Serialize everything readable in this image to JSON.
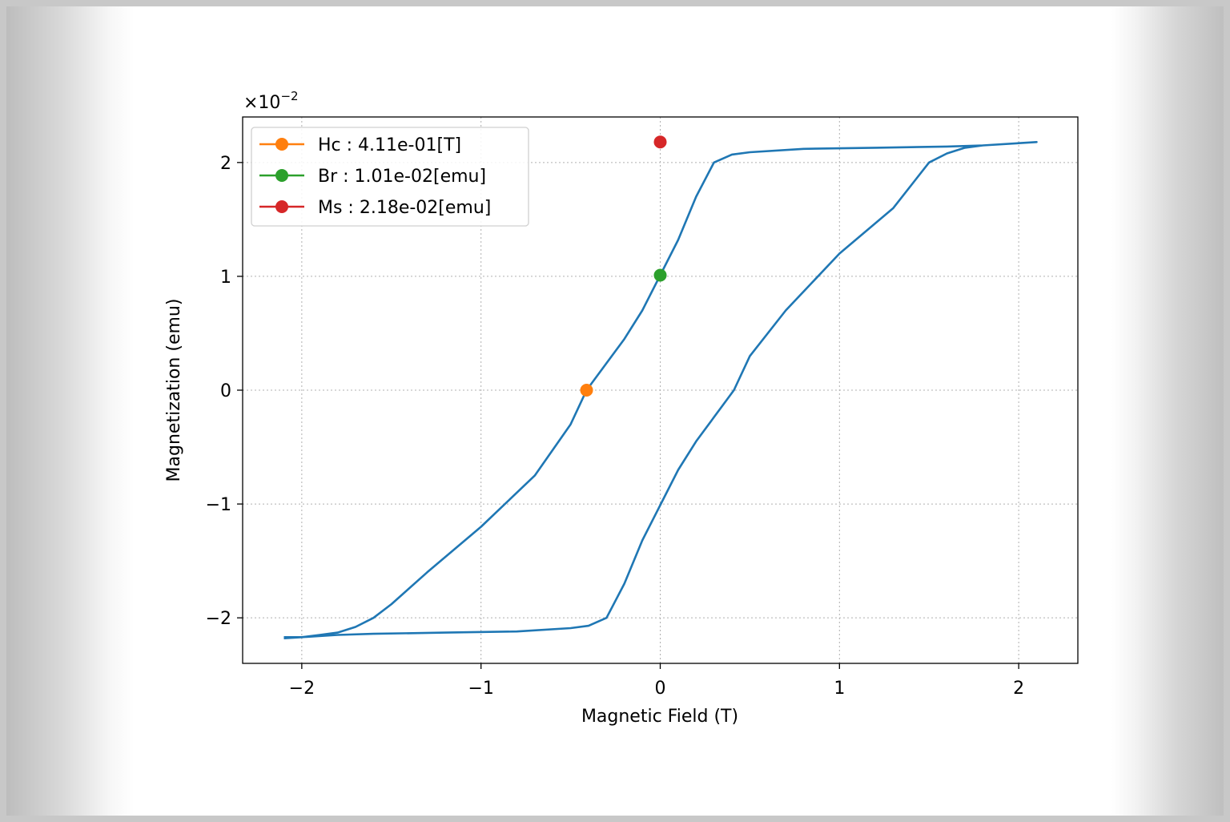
{
  "chart_data": {
    "type": "line",
    "title": "",
    "xlabel": "Magnetic Field (T)",
    "ylabel": "Magnetization (emu)",
    "y_offset_text": "×10",
    "y_offset_exponent": "−2",
    "xlim": [
      -2.33,
      2.33
    ],
    "ylim": [
      -2.4,
      2.4
    ],
    "x_ticks": [
      {
        "value": -2,
        "label": "−2"
      },
      {
        "value": -1,
        "label": "−1"
      },
      {
        "value": 0,
        "label": "0"
      },
      {
        "value": 1,
        "label": "1"
      },
      {
        "value": 2,
        "label": "2"
      }
    ],
    "y_ticks": [
      {
        "value": -2,
        "label": "−2"
      },
      {
        "value": -1,
        "label": "−1"
      },
      {
        "value": 0,
        "label": "0"
      },
      {
        "value": 1,
        "label": "1"
      },
      {
        "value": 2,
        "label": "2"
      }
    ],
    "grid": true,
    "legend_position": "top-left",
    "series": [
      {
        "color": "#1f77b4",
        "x": [
          -2.1,
          -2.0,
          -1.9,
          -1.8,
          -1.7,
          -1.6,
          -1.5,
          -1.3,
          -1.0,
          -0.7,
          -0.5,
          -0.411,
          -0.2,
          -0.1,
          0.0,
          0.1,
          0.2,
          0.3,
          0.4,
          0.5,
          0.8,
          1.2,
          1.6,
          1.8,
          2.0,
          2.1,
          2.0,
          1.8,
          1.7,
          1.6,
          1.5,
          1.3,
          1.0,
          0.7,
          0.5,
          0.411,
          0.2,
          0.1,
          0.0,
          -0.1,
          -0.2,
          -0.3,
          -0.4,
          -0.5,
          -0.8,
          -1.2,
          -1.6,
          -1.8,
          -2.0,
          -2.1
        ],
        "y": [
          -2.17,
          -2.17,
          -2.15,
          -2.13,
          -2.08,
          -2.0,
          -1.88,
          -1.6,
          -1.2,
          -0.75,
          -0.3,
          0.0,
          0.45,
          0.7,
          1.01,
          1.32,
          1.7,
          2.0,
          2.07,
          2.09,
          2.12,
          2.13,
          2.14,
          2.15,
          2.17,
          2.18,
          2.17,
          2.15,
          2.13,
          2.08,
          2.0,
          1.6,
          1.2,
          0.7,
          0.3,
          0.0,
          -0.45,
          -0.7,
          -1.01,
          -1.32,
          -1.7,
          -2.0,
          -2.07,
          -2.09,
          -2.12,
          -2.13,
          -2.14,
          -2.15,
          -2.17,
          -2.18
        ]
      }
    ],
    "markers": [
      {
        "label": "Hc : 4.11e-01[T]",
        "x": -0.411,
        "y": 0.0,
        "color": "#ff7f0e"
      },
      {
        "label": "Br : 1.01e-02[emu]",
        "x": 0.0,
        "y": 1.01,
        "color": "#2ca02c"
      },
      {
        "label": "Ms : 2.18e-02[emu]",
        "x": 0.0,
        "y": 2.18,
        "color": "#d62728"
      }
    ]
  }
}
